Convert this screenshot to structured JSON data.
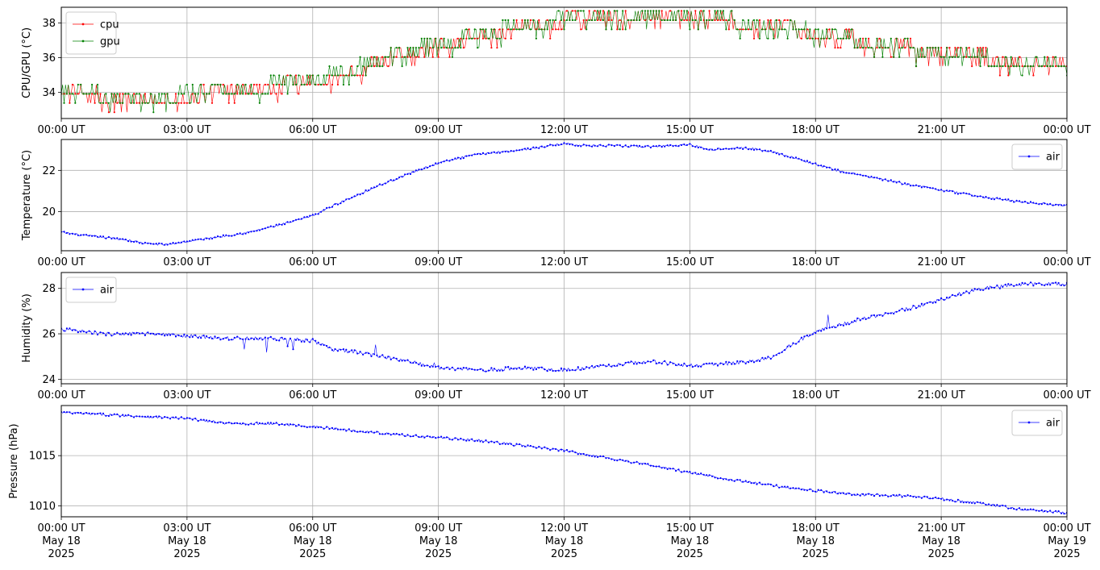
{
  "chart_data": [
    {
      "type": "line",
      "ylabel": "CPU/GPU (°C)",
      "ylim": [
        32.5,
        38.9
      ],
      "yticks": [
        34,
        36,
        38
      ],
      "grid": true,
      "legend_loc": "upper-left",
      "x_ticks": [
        "00:00 UT",
        "03:00 UT",
        "06:00 UT",
        "09:00 UT",
        "12:00 UT",
        "15:00 UT",
        "18:00 UT",
        "21:00 UT",
        "00:00 UT"
      ],
      "series": [
        {
          "name": "cpu",
          "color": "#ff0000",
          "x_hours": [
            0,
            1,
            2,
            3,
            4,
            5,
            6,
            7,
            8,
            9,
            10,
            11,
            12,
            13,
            14,
            15,
            16,
            17,
            18,
            19,
            20,
            21,
            22,
            23,
            24
          ],
          "values": [
            34.0,
            33.6,
            33.5,
            33.6,
            33.8,
            34.1,
            34.4,
            35.0,
            35.9,
            36.5,
            37.0,
            37.5,
            37.9,
            38.0,
            38.0,
            38.0,
            37.9,
            37.6,
            37.2,
            36.8,
            36.4,
            36.1,
            35.8,
            35.6,
            35.5
          ]
        },
        {
          "name": "gpu",
          "color": "#008000",
          "x_hours": [
            0,
            1,
            2,
            3,
            4,
            5,
            6,
            7,
            8,
            9,
            10,
            11,
            12,
            13,
            14,
            15,
            16,
            17,
            18,
            19,
            20,
            21,
            22,
            23,
            24
          ],
          "values": [
            34.1,
            33.6,
            33.5,
            33.7,
            33.9,
            34.2,
            34.5,
            35.2,
            36.0,
            36.6,
            37.1,
            37.6,
            38.0,
            38.1,
            38.1,
            38.0,
            37.9,
            37.6,
            37.3,
            36.8,
            36.4,
            36.1,
            35.8,
            35.6,
            35.5
          ]
        }
      ]
    },
    {
      "type": "line",
      "ylabel": "Temperature (°C)",
      "ylim": [
        18.1,
        23.5
      ],
      "yticks": [
        20,
        22
      ],
      "grid": true,
      "legend_loc": "upper-right",
      "x_ticks": [
        "00:00 UT",
        "03:00 UT",
        "06:00 UT",
        "09:00 UT",
        "12:00 UT",
        "15:00 UT",
        "18:00 UT",
        "21:00 UT",
        "00:00 UT"
      ],
      "series": [
        {
          "name": "air",
          "color": "#0000ff",
          "x_hours": [
            0,
            0.5,
            1,
            1.5,
            2,
            2.5,
            3,
            3.5,
            4,
            4.5,
            5,
            5.5,
            6,
            6.5,
            7,
            7.5,
            8,
            8.5,
            9,
            9.5,
            10,
            11,
            12,
            12.5,
            13,
            14,
            15,
            15.5,
            16,
            16.5,
            17,
            17.5,
            18,
            18.5,
            19,
            19.5,
            20,
            21,
            22,
            23,
            24
          ],
          "values": [
            19.0,
            18.85,
            18.75,
            18.65,
            18.45,
            18.4,
            18.55,
            18.7,
            18.85,
            19.0,
            19.25,
            19.5,
            19.8,
            20.3,
            20.75,
            21.2,
            21.6,
            22.0,
            22.35,
            22.6,
            22.8,
            23.0,
            23.3,
            23.2,
            23.2,
            23.15,
            23.25,
            23.0,
            23.1,
            23.05,
            22.9,
            22.6,
            22.3,
            22.0,
            21.8,
            21.6,
            21.4,
            21.05,
            20.7,
            20.45,
            20.3
          ]
        }
      ]
    },
    {
      "type": "line",
      "ylabel": "Humidity (%)",
      "ylim": [
        23.8,
        28.7
      ],
      "yticks": [
        24,
        26,
        28
      ],
      "grid": true,
      "legend_loc": "upper-left",
      "x_ticks": [
        "00:00 UT",
        "03:00 UT",
        "06:00 UT",
        "09:00 UT",
        "12:00 UT",
        "15:00 UT",
        "18:00 UT",
        "21:00 UT",
        "00:00 UT"
      ],
      "series": [
        {
          "name": "air",
          "color": "#0000ff",
          "x_hours": [
            0,
            1,
            2,
            3,
            4,
            5,
            6,
            6.5,
            7,
            8,
            9,
            10,
            11,
            12,
            13,
            14,
            15,
            16,
            16.5,
            17,
            17.5,
            18,
            19,
            20,
            21,
            21.5,
            22,
            23,
            24
          ],
          "values": [
            26.2,
            26.0,
            26.0,
            25.9,
            25.8,
            25.8,
            25.7,
            25.3,
            25.2,
            24.9,
            24.5,
            24.4,
            24.5,
            24.4,
            24.6,
            24.8,
            24.6,
            24.7,
            24.8,
            25.0,
            25.6,
            26.1,
            26.6,
            27.0,
            27.5,
            27.8,
            28.0,
            28.2,
            28.2
          ]
        }
      ]
    },
    {
      "type": "line",
      "ylabel": "Pressure (hPa)",
      "ylim": [
        1008.9,
        1020.0
      ],
      "yticks": [
        1010,
        1015
      ],
      "grid": true,
      "legend_loc": "upper-right",
      "x_ticks": [
        "00:00 UT\nMay 18\n2025",
        "03:00 UT\nMay 18\n2025",
        "06:00 UT\nMay 18\n2025",
        "09:00 UT\nMay 18\n2025",
        "12:00 UT\nMay 18\n2025",
        "15:00 UT\nMay 18\n2025",
        "18:00 UT\nMay 18\n2025",
        "21:00 UT\nMay 18\n2025",
        "00:00 UT\nMay 19\n2025"
      ],
      "series": [
        {
          "name": "air",
          "color": "#0000ff",
          "x_hours": [
            0,
            1,
            2,
            3,
            4,
            5,
            6,
            7,
            8,
            9,
            10,
            11,
            12,
            13,
            14,
            15,
            16,
            17,
            18,
            19,
            20,
            21,
            22,
            23,
            24
          ],
          "values": [
            1019.3,
            1019.1,
            1018.9,
            1018.7,
            1018.2,
            1018.2,
            1017.9,
            1017.5,
            1017.1,
            1016.8,
            1016.5,
            1016.0,
            1015.5,
            1014.8,
            1014.1,
            1013.3,
            1012.6,
            1012.0,
            1011.5,
            1011.1,
            1011.0,
            1010.7,
            1010.2,
            1009.6,
            1009.3
          ]
        }
      ]
    }
  ]
}
